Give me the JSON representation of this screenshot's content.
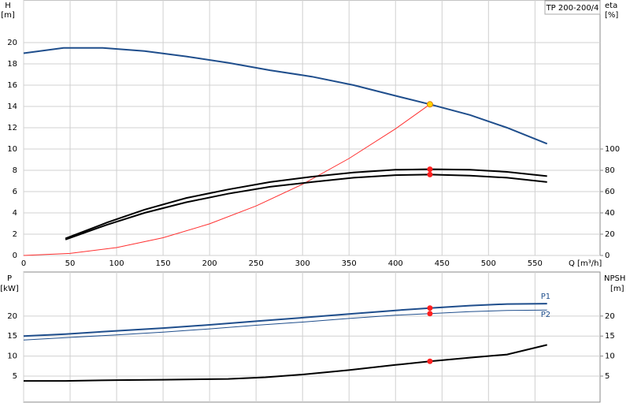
{
  "chart_data": [
    {
      "type": "line",
      "title": "TP 200-200/4",
      "x_label": "Q [m³/h]",
      "y_label": "H",
      "y_unit": "[m]",
      "y2_label": "eta",
      "y2_unit": "[%]",
      "xlim": [
        0,
        620
      ],
      "xticks": [
        0,
        50,
        100,
        150,
        200,
        250,
        300,
        350,
        400,
        450,
        500,
        550
      ],
      "ylim": [
        0,
        24
      ],
      "yticks": [
        0,
        2,
        4,
        6,
        8,
        10,
        12,
        14,
        16,
        18,
        20
      ],
      "y2lim": [
        0,
        240
      ],
      "y2ticks": [
        0,
        20,
        40,
        60,
        80,
        100
      ],
      "grid": true,
      "series": [
        {
          "color": "#1f4e8c",
          "width": 2,
          "x": [
            0,
            43,
            85,
            130,
            175,
            220,
            265,
            310,
            355,
            400,
            437,
            480,
            520,
            563
          ],
          "values": [
            19.0,
            19.5,
            19.5,
            19.2,
            18.7,
            18.1,
            17.4,
            16.8,
            16.0,
            15.0,
            14.2,
            13.2,
            12.0,
            10.5
          ]
        },
        {
          "color": "#ff3030",
          "width": 1,
          "x": [
            0,
            50,
            100,
            150,
            200,
            250,
            300,
            350,
            400,
            437
          ],
          "values": [
            0,
            0.19,
            0.74,
            1.67,
            2.97,
            4.65,
            6.69,
            9.11,
            11.9,
            14.2
          ]
        },
        {
          "color": "#000000",
          "width": 2,
          "axis": "y2",
          "x": [
            45,
            90,
            130,
            175,
            220,
            265,
            310,
            355,
            400,
            437,
            480,
            520,
            563
          ],
          "values": [
            16,
            31,
            43,
            54,
            62,
            69,
            74,
            78,
            80.5,
            81,
            80.5,
            78.5,
            74.5
          ]
        },
        {
          "color": "#000000",
          "width": 2,
          "axis": "y2",
          "x": [
            45,
            90,
            130,
            175,
            220,
            265,
            310,
            355,
            400,
            437,
            480,
            520,
            563
          ],
          "values": [
            15,
            29,
            40,
            50,
            58,
            64.5,
            69,
            73,
            75.5,
            76,
            75,
            73,
            69
          ]
        }
      ],
      "points": [
        {
          "color": "#ffd700",
          "x": 437,
          "value": 14.2
        },
        {
          "color": "#ff2020",
          "axis": "y2",
          "x": 437,
          "value": 81
        },
        {
          "color": "#ff2020",
          "axis": "y2",
          "x": 437,
          "value": 76
        }
      ]
    },
    {
      "type": "line",
      "y_label": "P",
      "y_unit": "[kW]",
      "y2_label": "NPSH",
      "y2_unit": "[m]",
      "xlim": [
        0,
        620
      ],
      "xticks": [
        0,
        50,
        100,
        150,
        200,
        250,
        300,
        350,
        400,
        450,
        500,
        550
      ],
      "ylim": [
        -1.5,
        31
      ],
      "yticks": [
        5,
        10,
        15,
        20
      ],
      "y2lim": [
        -1.5,
        31
      ],
      "y2ticks": [
        5,
        10,
        15,
        20
      ],
      "grid": true,
      "series": [
        {
          "name": "P1",
          "color": "#1f4e8c",
          "width": 2,
          "x": [
            0,
            45,
            100,
            150,
            200,
            250,
            300,
            350,
            400,
            437,
            480,
            520,
            563
          ],
          "values": [
            15.0,
            15.5,
            16.3,
            17.0,
            17.8,
            18.7,
            19.6,
            20.5,
            21.4,
            22.0,
            22.6,
            23.0,
            23.1
          ]
        },
        {
          "name": "P2",
          "color": "#1f4e8c",
          "width": 1,
          "x": [
            0,
            45,
            100,
            150,
            200,
            250,
            300,
            350,
            400,
            437,
            480,
            520,
            563
          ],
          "values": [
            14.0,
            14.6,
            15.3,
            16.0,
            16.8,
            17.7,
            18.5,
            19.4,
            20.2,
            20.6,
            21.1,
            21.4,
            21.5
          ]
        },
        {
          "color": "#000000",
          "width": 2,
          "axis": "y2",
          "x": [
            0,
            45,
            100,
            150,
            220,
            260,
            300,
            350,
            400,
            437,
            480,
            520,
            563
          ],
          "values": [
            3.8,
            3.8,
            4.0,
            4.1,
            4.3,
            4.7,
            5.4,
            6.5,
            7.8,
            8.7,
            9.6,
            10.4,
            12.8
          ]
        }
      ],
      "points": [
        {
          "color": "#ff2020",
          "x": 437,
          "value": 22.0
        },
        {
          "color": "#ff2020",
          "x": 437,
          "value": 20.6
        },
        {
          "color": "#ff2020",
          "axis": "y2",
          "x": 437,
          "value": 8.7
        }
      ]
    }
  ]
}
